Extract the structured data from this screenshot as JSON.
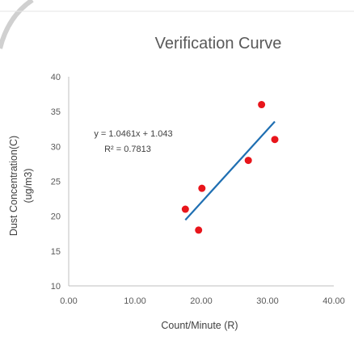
{
  "chart_data": {
    "type": "scatter",
    "title": "Verification Curve",
    "xlabel": "Count/Minute (R)",
    "ylabel_line1": "Dust Concentration(C)",
    "ylabel_line2": "(ug/m3)",
    "xlim": [
      0,
      40
    ],
    "ylim": [
      10,
      40
    ],
    "xticks": [
      "0.00",
      "10.00",
      "20.00",
      "30.00",
      "40.00"
    ],
    "yticks": [
      "10",
      "15",
      "20",
      "25",
      "30",
      "35",
      "40"
    ],
    "xtick_values": [
      0,
      10,
      20,
      30,
      40
    ],
    "ytick_values": [
      10,
      15,
      20,
      25,
      30,
      35,
      40
    ],
    "grid": false,
    "points": [
      {
        "x": 17.6,
        "y": 21
      },
      {
        "x": 19.6,
        "y": 18
      },
      {
        "x": 20.1,
        "y": 24
      },
      {
        "x": 27.1,
        "y": 28
      },
      {
        "x": 29.1,
        "y": 36
      },
      {
        "x": 31.1,
        "y": 31
      }
    ],
    "trendline": {
      "type": "linear",
      "slope": 1.0461,
      "intercept": 1.043,
      "x_range": [
        17.6,
        31.1
      ],
      "equation": "y = 1.0461x + 1.043",
      "r_squared": "R² = 0.7813"
    },
    "colors": {
      "points": "#e8151b",
      "trendline": "#1f6fb2",
      "axis": "#bfbfbf",
      "text": "#595959"
    }
  }
}
